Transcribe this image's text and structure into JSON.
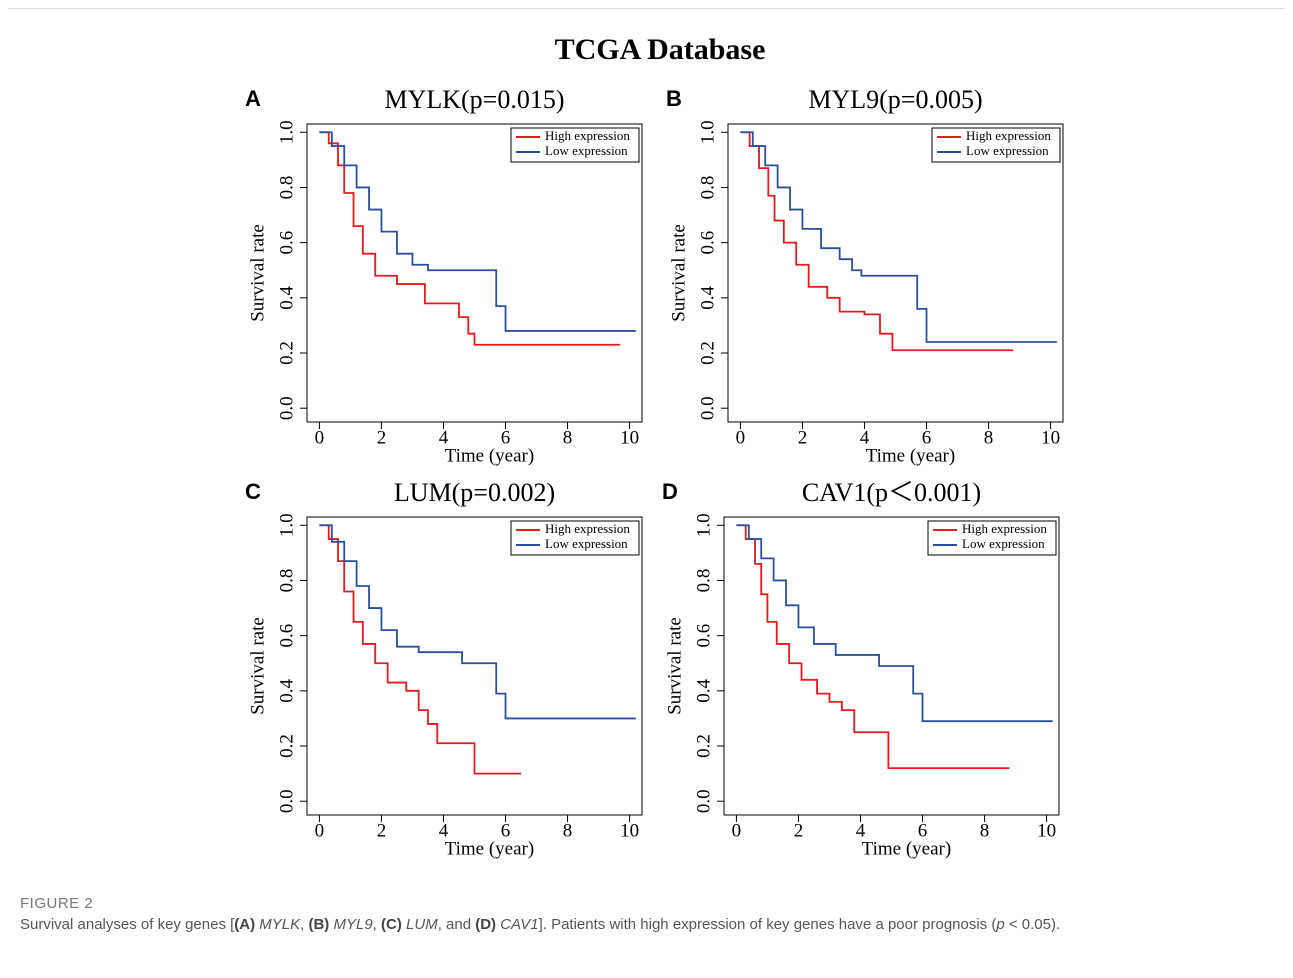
{
  "figure_title": "TCGA Database",
  "caption": {
    "label": "FIGURE 2",
    "segments": [
      "Survival analyses of key genes [",
      "(A)",
      "MYLK",
      ", ",
      "(B)",
      "MYL9",
      ", ",
      "(C)",
      "LUM",
      ", and ",
      "(D)",
      "CAV1",
      "]. Patients with high expression of key genes have a poor prognosis (",
      "p",
      " < 0.05)."
    ]
  },
  "chart_data": [
    {
      "type": "line",
      "label": "A",
      "title": "MYLK(p=0.015)",
      "x_label": "Time (year)",
      "y_label": "Survival rate",
      "xlim": [
        -0.4,
        10.4
      ],
      "ylim": [
        -0.05,
        1.03
      ],
      "xticks": [
        0,
        2,
        4,
        6,
        8,
        10
      ],
      "yticks": [
        {
          "value": 0,
          "label": "0.0"
        },
        {
          "value": 0.2,
          "label": "0.2"
        },
        {
          "value": 0.4,
          "label": "0.4"
        },
        {
          "value": 0.6,
          "label": "0.6"
        },
        {
          "value": 0.8,
          "label": "0.8"
        },
        {
          "value": 1,
          "label": "1.0"
        }
      ],
      "legend": "upper right",
      "series": [
        {
          "name": "High expression",
          "color": "#e41a1c",
          "x": [
            0,
            0.3,
            0.3,
            0.6,
            0.6,
            0.8,
            0.8,
            1.1,
            1.1,
            1.4,
            1.4,
            1.8,
            1.8,
            2.5,
            2.5,
            3.4,
            3.4,
            4.5,
            4.5,
            4.8,
            4.8,
            5.0,
            5.0,
            9.7
          ],
          "values": [
            1,
            1,
            0.96,
            0.96,
            0.88,
            0.88,
            0.78,
            0.78,
            0.66,
            0.66,
            0.56,
            0.56,
            0.48,
            0.48,
            0.45,
            0.45,
            0.38,
            0.38,
            0.33,
            0.33,
            0.27,
            0.27,
            0.23,
            0.23
          ]
        },
        {
          "name": "Low expression",
          "color": "#2b4f9e",
          "x": [
            0,
            0.4,
            0.4,
            0.8,
            0.8,
            1.2,
            1.2,
            1.6,
            1.6,
            2.0,
            2.0,
            2.5,
            2.5,
            3.0,
            3.0,
            3.5,
            3.5,
            5.7,
            5.7,
            6.0,
            6.0,
            10.2
          ],
          "values": [
            1,
            1,
            0.95,
            0.95,
            0.88,
            0.88,
            0.8,
            0.8,
            0.72,
            0.72,
            0.64,
            0.64,
            0.56,
            0.56,
            0.52,
            0.52,
            0.5,
            0.5,
            0.37,
            0.37,
            0.28,
            0.28
          ]
        }
      ]
    },
    {
      "type": "line",
      "label": "B",
      "title": "MYL9(p=0.005)",
      "x_label": "Time (year)",
      "y_label": "Survival rate",
      "xlim": [
        -0.4,
        10.4
      ],
      "ylim": [
        -0.05,
        1.03
      ],
      "xticks": [
        0,
        2,
        4,
        6,
        8,
        10
      ],
      "yticks": [
        {
          "value": 0,
          "label": "0.0"
        },
        {
          "value": 0.2,
          "label": "0.2"
        },
        {
          "value": 0.4,
          "label": "0.4"
        },
        {
          "value": 0.6,
          "label": "0.6"
        },
        {
          "value": 0.8,
          "label": "0.8"
        },
        {
          "value": 1,
          "label": "1.0"
        }
      ],
      "legend": "upper right",
      "series": [
        {
          "name": "High expression",
          "color": "#e41a1c",
          "x": [
            0,
            0.3,
            0.3,
            0.6,
            0.6,
            0.9,
            0.9,
            1.1,
            1.1,
            1.4,
            1.4,
            1.8,
            1.8,
            2.2,
            2.2,
            2.8,
            2.8,
            3.2,
            3.2,
            4.0,
            4.0,
            4.5,
            4.5,
            4.9,
            4.9,
            8.8
          ],
          "values": [
            1,
            1,
            0.95,
            0.95,
            0.87,
            0.87,
            0.77,
            0.77,
            0.68,
            0.68,
            0.6,
            0.6,
            0.52,
            0.52,
            0.44,
            0.44,
            0.4,
            0.4,
            0.35,
            0.35,
            0.34,
            0.34,
            0.27,
            0.27,
            0.21,
            0.21
          ]
        },
        {
          "name": "Low expression",
          "color": "#2b4f9e",
          "x": [
            0,
            0.4,
            0.4,
            0.8,
            0.8,
            1.2,
            1.2,
            1.6,
            1.6,
            2.0,
            2.0,
            2.6,
            2.6,
            3.2,
            3.2,
            3.6,
            3.6,
            3.9,
            3.9,
            5.7,
            5.7,
            6.0,
            6.0,
            10.2
          ],
          "values": [
            1,
            1,
            0.95,
            0.95,
            0.88,
            0.88,
            0.8,
            0.8,
            0.72,
            0.72,
            0.65,
            0.65,
            0.58,
            0.58,
            0.54,
            0.54,
            0.5,
            0.5,
            0.48,
            0.48,
            0.36,
            0.36,
            0.24,
            0.24
          ]
        }
      ]
    },
    {
      "type": "line",
      "label": "C",
      "title": "LUM(p=0.002)",
      "x_label": "Time (year)",
      "y_label": "Survival rate",
      "xlim": [
        -0.4,
        10.4
      ],
      "ylim": [
        -0.05,
        1.03
      ],
      "xticks": [
        0,
        2,
        4,
        6,
        8,
        10
      ],
      "yticks": [
        {
          "value": 0,
          "label": "0.0"
        },
        {
          "value": 0.2,
          "label": "0.2"
        },
        {
          "value": 0.4,
          "label": "0.4"
        },
        {
          "value": 0.6,
          "label": "0.6"
        },
        {
          "value": 0.8,
          "label": "0.8"
        },
        {
          "value": 1,
          "label": "1.0"
        }
      ],
      "legend": "upper right",
      "series": [
        {
          "name": "High expression",
          "color": "#e41a1c",
          "x": [
            0,
            0.3,
            0.3,
            0.6,
            0.6,
            0.8,
            0.8,
            1.1,
            1.1,
            1.4,
            1.4,
            1.8,
            1.8,
            2.2,
            2.2,
            2.8,
            2.8,
            3.2,
            3.2,
            3.5,
            3.5,
            3.8,
            3.8,
            5.0,
            5.0,
            6.5
          ],
          "values": [
            1,
            1,
            0.95,
            0.95,
            0.87,
            0.87,
            0.76,
            0.76,
            0.65,
            0.65,
            0.57,
            0.57,
            0.5,
            0.5,
            0.43,
            0.43,
            0.4,
            0.4,
            0.33,
            0.33,
            0.28,
            0.28,
            0.21,
            0.21,
            0.1,
            0.1
          ]
        },
        {
          "name": "Low expression",
          "color": "#2b4f9e",
          "x": [
            0,
            0.4,
            0.4,
            0.8,
            0.8,
            1.2,
            1.2,
            1.6,
            1.6,
            2.0,
            2.0,
            2.5,
            2.5,
            3.2,
            3.2,
            4.6,
            4.6,
            5.7,
            5.7,
            6.0,
            6.0,
            10.2
          ],
          "values": [
            1,
            1,
            0.94,
            0.94,
            0.87,
            0.87,
            0.78,
            0.78,
            0.7,
            0.7,
            0.62,
            0.62,
            0.56,
            0.56,
            0.54,
            0.54,
            0.5,
            0.5,
            0.39,
            0.39,
            0.3,
            0.3
          ]
        }
      ]
    },
    {
      "type": "line",
      "label": "D",
      "title": "CAV1(p＜0.001)",
      "x_label": "Time (year)",
      "y_label": "Survival rate",
      "xlim": [
        -0.4,
        10.4
      ],
      "ylim": [
        -0.05,
        1.03
      ],
      "xticks": [
        0,
        2,
        4,
        6,
        8,
        10
      ],
      "yticks": [
        {
          "value": 0,
          "label": "0.0"
        },
        {
          "value": 0.2,
          "label": "0.2"
        },
        {
          "value": 0.4,
          "label": "0.4"
        },
        {
          "value": 0.6,
          "label": "0.6"
        },
        {
          "value": 0.8,
          "label": "0.8"
        },
        {
          "value": 1,
          "label": "1.0"
        }
      ],
      "legend": "upper right",
      "series": [
        {
          "name": "High expression",
          "color": "#e41a1c",
          "x": [
            0,
            0.3,
            0.3,
            0.6,
            0.6,
            0.8,
            0.8,
            1.0,
            1.0,
            1.3,
            1.3,
            1.7,
            1.7,
            2.1,
            2.1,
            2.6,
            2.6,
            3.0,
            3.0,
            3.4,
            3.4,
            3.8,
            3.8,
            4.9,
            4.9,
            8.8
          ],
          "values": [
            1,
            1,
            0.95,
            0.95,
            0.86,
            0.86,
            0.75,
            0.75,
            0.65,
            0.65,
            0.57,
            0.57,
            0.5,
            0.5,
            0.44,
            0.44,
            0.39,
            0.39,
            0.36,
            0.36,
            0.33,
            0.33,
            0.25,
            0.25,
            0.12,
            0.12
          ]
        },
        {
          "name": "Low expression",
          "color": "#2b4f9e",
          "x": [
            0,
            0.4,
            0.4,
            0.8,
            0.8,
            1.2,
            1.2,
            1.6,
            1.6,
            2.0,
            2.0,
            2.5,
            2.5,
            3.2,
            3.2,
            4.6,
            4.6,
            5.7,
            5.7,
            6.0,
            6.0,
            10.2
          ],
          "values": [
            1,
            1,
            0.95,
            0.95,
            0.88,
            0.88,
            0.8,
            0.8,
            0.71,
            0.71,
            0.63,
            0.63,
            0.57,
            0.57,
            0.53,
            0.53,
            0.49,
            0.49,
            0.39,
            0.39,
            0.29,
            0.29
          ]
        }
      ]
    }
  ]
}
